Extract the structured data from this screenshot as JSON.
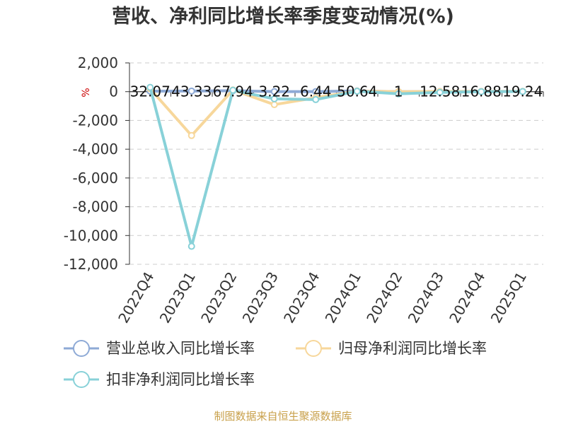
{
  "chart_data": {
    "type": "line",
    "title": "营收、净利同比增长率季度变动情况(%)",
    "ylabel": "%",
    "source": "制图数据来自恒生聚源数据库",
    "categories": [
      "2022Q4",
      "2023Q1",
      "2023Q2",
      "2023Q3",
      "2023Q4",
      "2024Q1",
      "2024Q2",
      "2024Q3",
      "2024Q4",
      "2025Q1"
    ],
    "ylim": [
      -12000,
      2000
    ],
    "yticks": [
      2000,
      0,
      -2000,
      -4000,
      -6000,
      -8000,
      -10000,
      -12000
    ],
    "ytick_labels": [
      "2,000",
      "0",
      "-2,000",
      "-4,000",
      "-6,000",
      "-8,000",
      "-10,000",
      "-12,000"
    ],
    "grid": true,
    "legend_position": "bottom",
    "series": [
      {
        "name": "营业总收入同比增长率",
        "color": "#8eaad6",
        "values": [
          32.07,
          43.33,
          67.94,
          3.22,
          6.44,
          50.64,
          1,
          12.58,
          16.88,
          19.24
        ]
      },
      {
        "name": "归母净利润同比增长率",
        "color": "#f7d79b",
        "values": [
          200,
          -3050,
          120,
          -900,
          -420,
          40,
          0,
          10,
          15,
          20
        ]
      },
      {
        "name": "扣非净利润同比增长率",
        "color": "#88d1d8",
        "values": [
          300,
          -10750,
          100,
          -500,
          -550,
          30,
          -150,
          -50,
          0,
          10
        ]
      }
    ],
    "data_labels": [
      "32.07",
      "43.33",
      "67.94",
      "3.22",
      "6.44",
      "50.64",
      "1",
      "12.58",
      "16.88",
      "19.24"
    ]
  }
}
